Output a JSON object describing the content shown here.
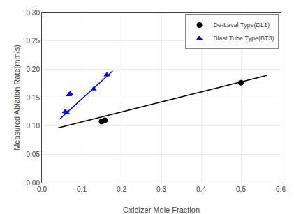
{
  "chart_data": {
    "type": "scatter",
    "xlabel": "Oxidizer Mole Fraction",
    "ylabel": "Measured Ablation Rate(mm/s)",
    "xlim": [
      0.0,
      0.6
    ],
    "ylim": [
      0.0,
      0.3
    ],
    "xticks": [
      {
        "value": 0.0,
        "label": "0.0"
      },
      0.1,
      0.2,
      0.3,
      0.4,
      0.5,
      0.6
    ],
    "yticks": [
      {
        "value": 0.0,
        "label": "0.00"
      },
      0.05,
      {
        "value": 0.1,
        "label": "0.10"
      },
      0.15,
      {
        "value": 0.2,
        "label": "0.20"
      },
      0.25,
      {
        "value": 0.3,
        "label": "0.30"
      }
    ],
    "grid": true,
    "legend": "upper right",
    "series": [
      {
        "type": "line",
        "color": "#000000",
        "x": [
          0.04,
          0.565
        ],
        "values": [
          0.0965,
          0.189
        ]
      },
      {
        "type": "line",
        "color": "#0000ff",
        "x": [
          0.046,
          0.178
        ],
        "values": [
          0.113,
          0.197
        ]
      },
      {
        "name": "De-Laval Type(DL1)",
        "type": "scatter",
        "color": "#000000",
        "marker": "circle",
        "x": [
          0.15,
          0.158,
          0.5
        ],
        "values": [
          0.108,
          0.11,
          0.176
        ]
      },
      {
        "name": "Blast Tube Type(BT3)",
        "type": "scatter",
        "color": "#0000ff",
        "marker": "triangle-up",
        "x": [
          0.058,
          0.063,
          0.068,
          0.071,
          0.13,
          0.163
        ],
        "values": [
          0.125,
          0.123,
          0.155,
          0.157,
          0.165,
          0.19
        ]
      }
    ]
  }
}
